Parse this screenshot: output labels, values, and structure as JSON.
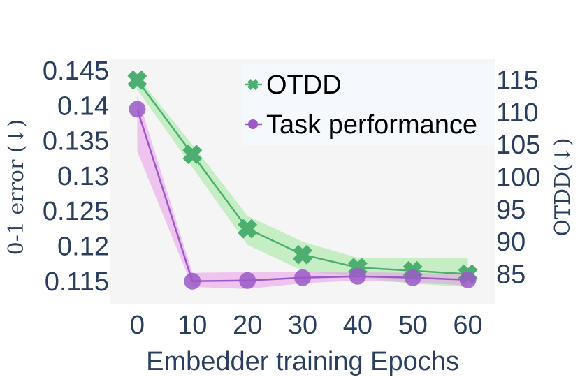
{
  "chart_data": {
    "type": "line",
    "xlabel": "Embedder training Epochs",
    "ylabel_left": "0-1 error (↓)",
    "ylabel_right": "OTDD(↓)",
    "x": [
      0,
      10,
      20,
      30,
      40,
      50,
      60
    ],
    "xlim": [
      -5,
      65
    ],
    "ylim_left": [
      0.1117,
      0.1467
    ],
    "ylim_right": [
      80.3,
      118.3
    ],
    "xticks": [
      "0",
      "10",
      "20",
      "30",
      "40",
      "50",
      "60"
    ],
    "yticks_left": [
      "0.145",
      "0.14",
      "0.135",
      "0.13",
      "0.125",
      "0.12",
      "0.115"
    ],
    "yticks_right": [
      "115",
      "110",
      "105",
      "100",
      "95",
      "90",
      "85"
    ],
    "series": [
      {
        "name": "OTDD",
        "axis": "right",
        "marker": "x",
        "color": "#4caf70",
        "band_color": "#9ee89a",
        "values": [
          115,
          103.5,
          92,
          88,
          86,
          85.5,
          85
        ],
        "upper": [
          115.5,
          105,
          94,
          90,
          87.5,
          87.5,
          87.5
        ],
        "lower": [
          113.5,
          101.5,
          89.5,
          85.5,
          84.5,
          83.5,
          83
        ]
      },
      {
        "name": "Task performance",
        "axis": "left",
        "marker": "circle",
        "color": "#9b59c8",
        "band_color": "#e89ae8",
        "values": [
          0.1395,
          0.115,
          0.1151,
          0.1155,
          0.1157,
          0.1155,
          0.1152
        ],
        "upper": [
          0.1415,
          0.1162,
          0.1163,
          0.1163,
          0.1163,
          0.1162,
          0.116
        ],
        "lower": [
          0.1335,
          0.1142,
          0.1139,
          0.1147,
          0.1151,
          0.1148,
          0.1144
        ]
      }
    ],
    "legend_position": "top-right",
    "colors": {
      "plot_bg": "#f5f5f5",
      "legend_bg": "#f5f9fe",
      "axis_text": "#2a3f5f"
    }
  }
}
